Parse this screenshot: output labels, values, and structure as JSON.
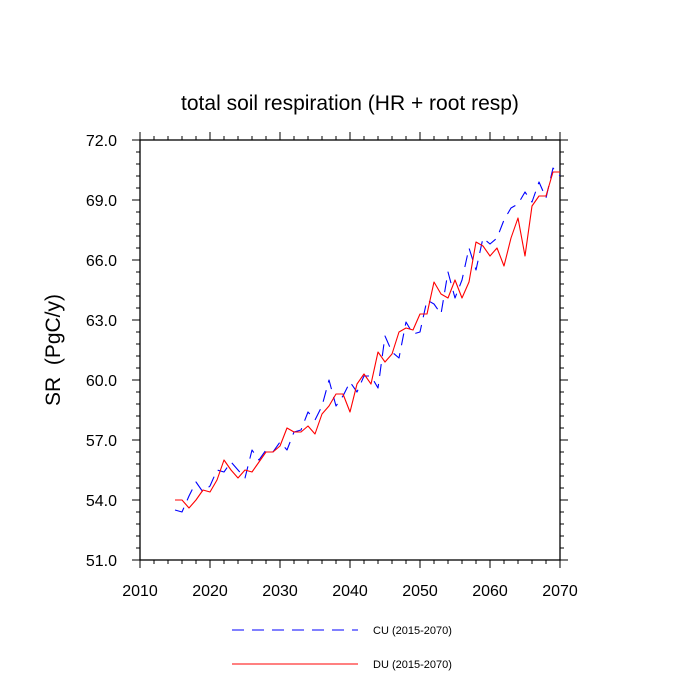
{
  "chart_data": {
    "type": "line",
    "title": "total soil respiration (HR + root resp)",
    "xlabel": "",
    "ylabel": "SR  (PgC/y)",
    "xlim": [
      2010,
      2070
    ],
    "ylim": [
      51.0,
      72.0
    ],
    "x_ticks": [
      2010,
      2020,
      2030,
      2040,
      2050,
      2060,
      2070
    ],
    "x_tick_labels": [
      "2010",
      "2020",
      "2030",
      "2040",
      "2050",
      "2060",
      "2070"
    ],
    "y_ticks": [
      51.0,
      54.0,
      57.0,
      60.0,
      63.0,
      66.0,
      69.0,
      72.0
    ],
    "y_tick_labels": [
      "51.0",
      "54.0",
      "57.0",
      "60.0",
      "63.0",
      "66.0",
      "69.0",
      "72.0"
    ],
    "x": [
      2015,
      2016,
      2017,
      2018,
      2019,
      2020,
      2021,
      2022,
      2023,
      2024,
      2025,
      2026,
      2027,
      2028,
      2029,
      2030,
      2031,
      2032,
      2033,
      2034,
      2035,
      2036,
      2037,
      2038,
      2039,
      2040,
      2041,
      2042,
      2043,
      2044,
      2045,
      2046,
      2047,
      2048,
      2049,
      2050,
      2051,
      2052,
      2053,
      2054,
      2055,
      2056,
      2057,
      2058,
      2059,
      2060,
      2061,
      2062,
      2063,
      2064,
      2065,
      2066,
      2067,
      2068,
      2069,
      2070
    ],
    "series": [
      {
        "name": "CU (2015-2070)",
        "color": "#0000ff",
        "style": "dashed",
        "values": [
          53.5,
          53.4,
          54.2,
          54.9,
          54.4,
          54.7,
          55.5,
          55.4,
          55.9,
          55.5,
          55.1,
          56.5,
          56.0,
          56.5,
          56.4,
          56.9,
          56.5,
          57.4,
          57.5,
          58.4,
          58.0,
          58.7,
          60.0,
          58.7,
          59.2,
          59.9,
          59.4,
          60.2,
          60.2,
          59.6,
          62.2,
          61.4,
          61.1,
          62.9,
          62.3,
          62.4,
          64.0,
          63.8,
          63.3,
          65.4,
          64.1,
          65.0,
          66.6,
          65.5,
          67.1,
          66.8,
          67.1,
          68.0,
          68.6,
          68.8,
          69.4,
          68.9,
          69.9,
          69.1,
          70.6,
          70.2
        ]
      },
      {
        "name": "DU (2015-2070)",
        "color": "#ff0000",
        "style": "solid",
        "values": [
          54.0,
          54.0,
          53.6,
          54.0,
          54.5,
          54.4,
          55.0,
          56.0,
          55.5,
          55.1,
          55.5,
          55.4,
          55.9,
          56.4,
          56.4,
          56.7,
          57.6,
          57.4,
          57.4,
          57.7,
          57.3,
          58.3,
          58.7,
          59.3,
          59.3,
          58.4,
          59.8,
          60.3,
          59.8,
          61.4,
          60.9,
          61.3,
          62.4,
          62.6,
          62.5,
          63.3,
          63.3,
          64.9,
          64.3,
          64.1,
          65.0,
          64.1,
          64.9,
          66.9,
          66.7,
          66.2,
          66.6,
          65.7,
          67.1,
          68.1,
          66.2,
          68.7,
          69.2,
          69.2,
          70.4,
          70.4
        ]
      }
    ],
    "legend": [
      {
        "label": "CU (2015-2070)",
        "color": "#0000ff",
        "style": "dashed"
      },
      {
        "label": "DU (2015-2070)",
        "color": "#ff0000",
        "style": "solid"
      }
    ],
    "legend_position": "bottom-center",
    "grid": false
  }
}
